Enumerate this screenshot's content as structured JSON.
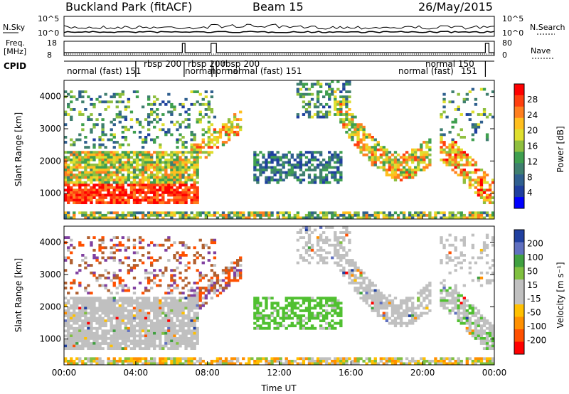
{
  "header": {
    "station": "Buckland Park (fitACF)",
    "beam": "Beam 15",
    "date": "26/May/2015"
  },
  "noise_panel": {
    "left_label": "N.Sky",
    "right_label": "N.Search",
    "left_ticks": [
      "10^5",
      "10^0"
    ],
    "right_ticks": [
      "10^5",
      "10^0"
    ]
  },
  "freq_panel": {
    "left_label_1": "Freq.",
    "left_label_2": "[MHz]",
    "right_label": "Nave",
    "left_ticks": [
      "18",
      "8"
    ],
    "right_ticks": [
      "80",
      "0"
    ]
  },
  "cpid_panel": {
    "label": "CPID",
    "modes": [
      {
        "text": "normal (fast) 151"
      },
      {
        "text": "rbsp 200"
      },
      {
        "text": "rbsp 200"
      },
      {
        "text": "normal"
      },
      {
        "text": "rbsp 200"
      },
      {
        "text": "normal"
      },
      {
        "text": "normal (fast) 151"
      },
      {
        "text": "normal (fast)"
      },
      {
        "text": "normal 150"
      },
      {
        "text": "151"
      }
    ]
  },
  "chart_data": [
    {
      "type": "heatmap",
      "name": "power",
      "ylabel": "Slant Range [km]",
      "xlim_hours": [
        0,
        24
      ],
      "ylim": [
        200,
        4500
      ],
      "y_ticks": [
        "1000",
        "2000",
        "3000",
        "4000"
      ],
      "colorbar_label": "Power [dB]",
      "colorbar_ticks": [
        "28",
        "24",
        "20",
        "16",
        "12",
        "8",
        "4"
      ],
      "colorscale": [
        "#0000ff",
        "#1f3f9f",
        "#2f5f8f",
        "#3f7f6f",
        "#3f9f4f",
        "#8fbf3f",
        "#dfdf2f",
        "#ffbf1f",
        "#ff7f1f",
        "#ff3f0f",
        "#ff0000"
      ]
    },
    {
      "type": "heatmap",
      "name": "velocity",
      "ylabel": "Slant Range [km]",
      "xlabel": "Time UT",
      "xlim_hours": [
        0,
        24
      ],
      "ylim": [
        200,
        4500
      ],
      "y_ticks": [
        "1000",
        "2000",
        "3000",
        "4000"
      ],
      "x_ticks": [
        "00:00",
        "04:00",
        "08:00",
        "12:00",
        "16:00",
        "20:00",
        "00:00"
      ],
      "colorbar_label": "Velocity [m s⁻¹]",
      "colorbar_ticks": [
        "200",
        "100",
        "50",
        "15",
        "-15",
        "-50",
        "-100",
        "-200"
      ],
      "colorscale": [
        "#ff0000",
        "#ff5000",
        "#ff9000",
        "#ffc000",
        "#c0c0c0",
        "#c0c0c0",
        "#80c040",
        "#40a040",
        "#6070c0",
        "#2040a0"
      ]
    }
  ]
}
